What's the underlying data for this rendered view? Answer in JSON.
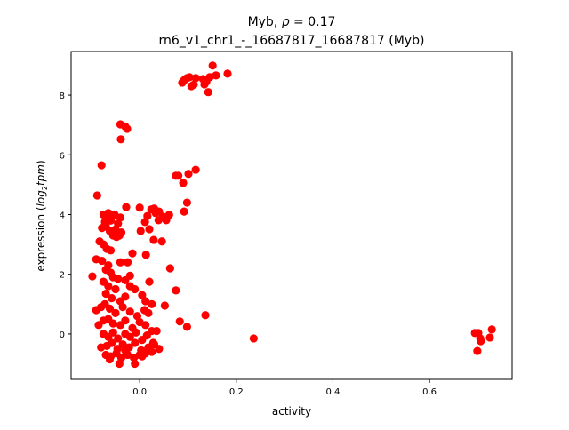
{
  "chart_data": {
    "type": "scatter",
    "title_line1_prefix": "Myb, ",
    "title_rho": "ρ",
    "title_line1_suffix": " = 0.17",
    "title_line2": "rn6_v1_chr1_-_16687817_16687817 (Myb)",
    "xlabel": "activity",
    "ylabel_prefix": "expression (",
    "ylabel_log": "log",
    "ylabel_sub": "2",
    "ylabel_tpm": "tpm",
    "ylabel_suffix": ")",
    "xlim": [
      -0.142,
      0.771
    ],
    "ylim": [
      -1.52,
      9.46
    ],
    "xticks": [
      {
        "v": 0.0,
        "label": "0.0"
      },
      {
        "v": 0.2,
        "label": "0.2"
      },
      {
        "v": 0.4,
        "label": "0.4"
      },
      {
        "v": 0.6,
        "label": "0.6"
      }
    ],
    "yticks": [
      {
        "v": 0,
        "label": "0"
      },
      {
        "v": 2,
        "label": "2"
      },
      {
        "v": 4,
        "label": "4"
      },
      {
        "v": 6,
        "label": "6"
      },
      {
        "v": 8,
        "label": "8"
      }
    ],
    "color": "#ff0000",
    "points": [
      [
        0.088,
        8.42
      ],
      [
        0.098,
        8.57
      ],
      [
        0.107,
        8.3
      ],
      [
        0.131,
        8.54
      ],
      [
        0.142,
        8.1
      ],
      [
        0.151,
        8.99
      ],
      [
        0.158,
        8.66
      ],
      [
        0.182,
        8.72
      ],
      [
        0.134,
        8.36
      ],
      [
        0.116,
        8.57
      ],
      [
        0.103,
        8.6
      ],
      [
        0.145,
        8.6
      ],
      [
        0.092,
        8.5
      ],
      [
        0.112,
        8.35
      ],
      [
        0.138,
        8.45
      ],
      [
        -0.04,
        7.02
      ],
      [
        -0.026,
        6.87
      ],
      [
        -0.039,
        6.52
      ],
      [
        -0.03,
        6.95
      ],
      [
        -0.079,
        5.65
      ],
      [
        -0.088,
        4.64
      ],
      [
        0.075,
        5.3
      ],
      [
        0.09,
        5.06
      ],
      [
        0.101,
        5.36
      ],
      [
        0.116,
        5.5
      ],
      [
        0.098,
        4.4
      ],
      [
        0.092,
        4.1
      ],
      [
        0.08,
        5.3
      ],
      [
        0.0,
        4.23
      ],
      [
        0.024,
        4.17
      ],
      [
        0.033,
        4.05
      ],
      [
        0.048,
        3.93
      ],
      [
        0.061,
        3.99
      ],
      [
        0.011,
        3.75
      ],
      [
        0.02,
        3.51
      ],
      [
        0.029,
        3.15
      ],
      [
        0.046,
        3.1
      ],
      [
        0.002,
        3.45
      ],
      [
        0.039,
        3.81
      ],
      [
        0.055,
        3.81
      ],
      [
        0.03,
        4.2
      ],
      [
        0.016,
        3.95
      ],
      [
        0.04,
        4.1
      ],
      [
        -0.028,
        4.25
      ],
      [
        -0.075,
        4.0
      ],
      [
        -0.068,
        3.9
      ],
      [
        -0.06,
        3.8
      ],
      [
        -0.052,
        4.0
      ],
      [
        -0.045,
        3.7
      ],
      [
        -0.07,
        3.6
      ],
      [
        -0.078,
        3.55
      ],
      [
        -0.062,
        3.45
      ],
      [
        -0.05,
        3.5
      ],
      [
        -0.042,
        3.3
      ],
      [
        -0.055,
        3.3
      ],
      [
        -0.072,
        3.75
      ],
      [
        -0.038,
        3.4
      ],
      [
        -0.065,
        4.05
      ],
      [
        -0.04,
        3.9
      ],
      [
        -0.048,
        3.25
      ],
      [
        -0.083,
        3.1
      ],
      [
        -0.075,
        3.0
      ],
      [
        -0.068,
        2.85
      ],
      [
        -0.06,
        2.8
      ],
      [
        -0.078,
        2.45
      ],
      [
        -0.09,
        2.5
      ],
      [
        -0.065,
        2.3
      ],
      [
        -0.04,
        2.4
      ],
      [
        -0.025,
        2.4
      ],
      [
        -0.015,
        2.7
      ],
      [
        0.013,
        2.65
      ],
      [
        -0.07,
        2.15
      ],
      [
        -0.06,
        2.05
      ],
      [
        -0.055,
        1.9
      ],
      [
        -0.098,
        1.93
      ],
      [
        -0.045,
        1.85
      ],
      [
        -0.03,
        1.8
      ],
      [
        -0.02,
        1.95
      ],
      [
        -0.075,
        1.75
      ],
      [
        -0.065,
        1.6
      ],
      [
        -0.05,
        1.5
      ],
      [
        -0.02,
        1.6
      ],
      [
        -0.01,
        1.5
      ],
      [
        0.005,
        1.3
      ],
      [
        0.02,
        1.75
      ],
      [
        -0.07,
        1.35
      ],
      [
        -0.058,
        1.2
      ],
      [
        -0.04,
        1.1
      ],
      [
        -0.03,
        1.25
      ],
      [
        0.012,
        1.1
      ],
      [
        0.025,
        1.0
      ],
      [
        -0.09,
        0.8
      ],
      [
        -0.08,
        0.9
      ],
      [
        -0.072,
        1.0
      ],
      [
        -0.062,
        0.85
      ],
      [
        -0.05,
        0.7
      ],
      [
        -0.035,
        0.9
      ],
      [
        -0.02,
        0.75
      ],
      [
        -0.005,
        0.6
      ],
      [
        0.01,
        0.8
      ],
      [
        0.018,
        0.7
      ],
      [
        -0.085,
        0.3
      ],
      [
        -0.075,
        0.45
      ],
      [
        -0.065,
        0.5
      ],
      [
        -0.055,
        0.35
      ],
      [
        -0.04,
        0.3
      ],
      [
        -0.03,
        0.45
      ],
      [
        -0.015,
        0.2
      ],
      [
        0.0,
        0.4
      ],
      [
        0.012,
        0.3
      ],
      [
        0.025,
        0.1
      ],
      [
        0.035,
        0.1
      ],
      [
        -0.075,
        0.0
      ],
      [
        -0.065,
        -0.1
      ],
      [
        -0.055,
        0.05
      ],
      [
        -0.045,
        -0.15
      ],
      [
        -0.03,
        0.0
      ],
      [
        -0.02,
        -0.1
      ],
      [
        -0.008,
        0.05
      ],
      [
        0.005,
        -0.2
      ],
      [
        0.015,
        -0.05
      ],
      [
        0.028,
        -0.3
      ],
      [
        -0.08,
        -0.45
      ],
      [
        -0.068,
        -0.4
      ],
      [
        -0.058,
        -0.3
      ],
      [
        -0.046,
        -0.5
      ],
      [
        -0.035,
        -0.35
      ],
      [
        -0.022,
        -0.45
      ],
      [
        -0.01,
        -0.3
      ],
      [
        0.003,
        -0.55
      ],
      [
        0.018,
        -0.45
      ],
      [
        0.03,
        -0.35
      ],
      [
        0.04,
        -0.5
      ],
      [
        -0.07,
        -0.7
      ],
      [
        -0.06,
        -0.75
      ],
      [
        -0.048,
        -0.65
      ],
      [
        -0.038,
        -0.8
      ],
      [
        -0.025,
        -0.7
      ],
      [
        -0.012,
        -0.8
      ],
      [
        0.0,
        -0.7
      ],
      [
        0.012,
        -0.65
      ],
      [
        0.025,
        -0.6
      ],
      [
        -0.062,
        -0.85
      ],
      [
        -0.042,
        -1.0
      ],
      [
        -0.01,
        -1.0
      ],
      [
        0.005,
        -0.75
      ],
      [
        -0.03,
        -0.55
      ],
      [
        0.02,
        -0.55
      ],
      [
        0.063,
        2.2
      ],
      [
        0.075,
        1.46
      ],
      [
        0.052,
        0.95
      ],
      [
        0.083,
        0.42
      ],
      [
        0.098,
        0.24
      ],
      [
        0.136,
        0.63
      ],
      [
        0.236,
        -0.15
      ],
      [
        0.694,
        0.03
      ],
      [
        0.701,
        0.03
      ],
      [
        0.705,
        -0.15
      ],
      [
        0.706,
        -0.24
      ],
      [
        0.699,
        -0.57
      ],
      [
        0.729,
        0.15
      ],
      [
        0.725,
        -0.12
      ]
    ]
  }
}
